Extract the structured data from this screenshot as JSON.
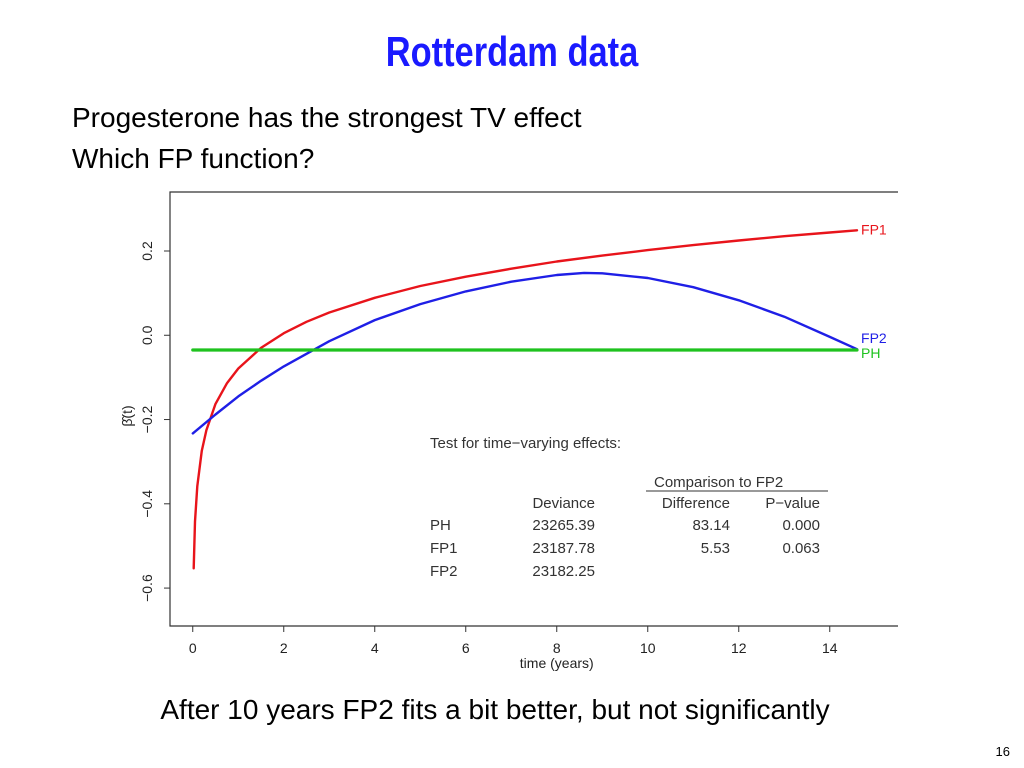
{
  "slide": {
    "title": "Rotterdam data",
    "bullets": [
      "Progesterone has the strongest TV effect",
      "Which FP function?"
    ],
    "footer": "After 10 years FP2 fits a bit better, but not significantly",
    "page_number": "16"
  },
  "chart_data": {
    "type": "line",
    "title": "",
    "xlabel": "time (years)",
    "ylabel": "β̂(t)",
    "xlim": [
      -0.5,
      15.5
    ],
    "ylim": [
      -0.69,
      0.34
    ],
    "x_ticks": [
      "0",
      "2",
      "4",
      "6",
      "8",
      "10",
      "12",
      "14"
    ],
    "y_ticks": [
      "−0.6",
      "−0.4",
      "−0.2",
      "0.0",
      "0.2"
    ],
    "grid": false,
    "legend": "labels at right end of each line",
    "series": [
      {
        "name": "FP1",
        "color": "#e8141b",
        "x": [
          0.02,
          0.05,
          0.1,
          0.2,
          0.3,
          0.5,
          0.75,
          1,
          1.5,
          2,
          2.5,
          3,
          4,
          5,
          6,
          7,
          8,
          9,
          10,
          11,
          12,
          13,
          14,
          14.6
        ],
        "values": [
          -0.553,
          -0.442,
          -0.358,
          -0.274,
          -0.225,
          -0.163,
          -0.114,
          -0.079,
          -0.03,
          0.005,
          0.032,
          0.054,
          0.089,
          0.117,
          0.139,
          0.158,
          0.175,
          0.189,
          0.202,
          0.214,
          0.225,
          0.235,
          0.244,
          0.249
        ]
      },
      {
        "name": "FP2",
        "color": "#1f1fe6",
        "x": [
          0,
          0.5,
          1,
          1.5,
          2,
          3,
          4,
          5,
          6,
          7,
          8,
          8.6,
          9,
          10,
          11,
          12,
          13,
          14,
          14.6
        ],
        "values": [
          -0.233,
          -0.188,
          -0.145,
          -0.108,
          -0.074,
          -0.014,
          0.036,
          0.074,
          0.104,
          0.127,
          0.143,
          0.148,
          0.147,
          0.136,
          0.114,
          0.083,
          0.044,
          -0.004,
          -0.033
        ]
      },
      {
        "name": "PH",
        "color": "#1fc21f",
        "x": [
          0,
          14.6
        ],
        "values": [
          -0.035,
          -0.035
        ]
      }
    ],
    "annotation": {
      "heading": "Test for time−varying effects:",
      "group_header": "Comparison to FP2",
      "columns": [
        "Deviance",
        "Difference",
        "P−value"
      ],
      "rows": [
        {
          "label": "PH",
          "deviance": "23265.39",
          "difference": "83.14",
          "pvalue": "0.000"
        },
        {
          "label": "FP1",
          "deviance": "23187.78",
          "difference": "5.53",
          "pvalue": "0.063"
        },
        {
          "label": "FP2",
          "deviance": "23182.25",
          "difference": "",
          "pvalue": ""
        }
      ]
    }
  }
}
